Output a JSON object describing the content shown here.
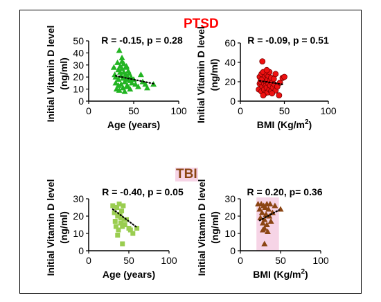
{
  "groups": {
    "ptsd": {
      "title": "PTSD",
      "color": "#ff0000"
    },
    "tbi": {
      "title": "TBI",
      "color": "#8b4513",
      "highlight": "#f6d4e6"
    }
  },
  "chart_data": [
    {
      "type": "scatter",
      "group": "PTSD",
      "annotation": "R = -0.15, p = 0.28",
      "xlabel": "Age (years)",
      "ylabel": [
        "Initial Vitamin D level",
        "(ng/ml)"
      ],
      "xlim": [
        0,
        100
      ],
      "ylim": [
        0,
        50
      ],
      "xticks": [
        0,
        50,
        100
      ],
      "yticks": [
        0,
        10,
        20,
        30,
        40,
        50
      ],
      "marker": "triangle",
      "color": "#22b422",
      "grid": false,
      "trendline": {
        "style": "dotted",
        "x": [
          30,
          72
        ],
        "y": [
          21,
          14.5
        ]
      },
      "points": [
        [
          28,
          28
        ],
        [
          29,
          22
        ],
        [
          30,
          15
        ],
        [
          31,
          10
        ],
        [
          32,
          32
        ],
        [
          33,
          26
        ],
        [
          33,
          18
        ],
        [
          34,
          9
        ],
        [
          35,
          29
        ],
        [
          35,
          24
        ],
        [
          36,
          21
        ],
        [
          36,
          14
        ],
        [
          37,
          33
        ],
        [
          37,
          27
        ],
        [
          38,
          19
        ],
        [
          38,
          11
        ],
        [
          39,
          31
        ],
        [
          39,
          24
        ],
        [
          40,
          16
        ],
        [
          40,
          8
        ],
        [
          41,
          28
        ],
        [
          41,
          22
        ],
        [
          42,
          29
        ],
        [
          42,
          18
        ],
        [
          43,
          13
        ],
        [
          44,
          25
        ],
        [
          44,
          19
        ],
        [
          45,
          23
        ],
        [
          46,
          17
        ],
        [
          47,
          20
        ],
        [
          48,
          15
        ],
        [
          50,
          18
        ],
        [
          52,
          14
        ],
        [
          55,
          12
        ],
        [
          58,
          22
        ],
        [
          60,
          16
        ],
        [
          63,
          14
        ],
        [
          65,
          11
        ],
        [
          72,
          14
        ],
        [
          34,
          42
        ],
        [
          37,
          36
        ],
        [
          30,
          20
        ],
        [
          46,
          10
        ],
        [
          33,
          13
        ],
        [
          42,
          12
        ]
      ]
    },
    {
      "type": "scatter",
      "group": "PTSD",
      "annotation": "R = -0.09, p = 0.51",
      "xlabel": "BMI (Kg/m²)",
      "ylabel": [
        "Initial Vitamin D level",
        "(ng/ml)"
      ],
      "xlim": [
        0,
        100
      ],
      "ylim": [
        0,
        60
      ],
      "xticks": [
        0,
        50,
        100
      ],
      "yticks": [
        0,
        20,
        40,
        60
      ],
      "marker": "circle",
      "color": "#ee1111",
      "grid": false,
      "trendline": {
        "style": "dotted",
        "x": [
          22,
          50
        ],
        "y": [
          21,
          17
        ]
      },
      "points": [
        [
          21,
          12
        ],
        [
          22,
          18
        ],
        [
          22,
          25
        ],
        [
          23,
          20
        ],
        [
          24,
          28
        ],
        [
          24,
          10
        ],
        [
          25,
          41
        ],
        [
          25,
          15
        ],
        [
          26,
          22
        ],
        [
          26,
          30
        ],
        [
          27,
          18
        ],
        [
          27,
          12
        ],
        [
          28,
          25
        ],
        [
          28,
          8
        ],
        [
          29,
          20
        ],
        [
          29,
          16
        ],
        [
          30,
          27
        ],
        [
          30,
          14
        ],
        [
          31,
          22
        ],
        [
          31,
          9
        ],
        [
          32,
          18
        ],
        [
          32,
          26
        ],
        [
          33,
          12
        ],
        [
          33,
          30
        ],
        [
          34,
          21
        ],
        [
          34,
          16
        ],
        [
          35,
          24
        ],
        [
          35,
          10
        ],
        [
          36,
          19
        ],
        [
          37,
          14
        ],
        [
          38,
          23
        ],
        [
          39,
          17
        ],
        [
          40,
          11
        ],
        [
          40,
          28
        ],
        [
          42,
          15
        ],
        [
          44,
          6
        ],
        [
          45,
          19
        ],
        [
          48,
          24
        ],
        [
          50,
          25
        ],
        [
          26,
          6
        ],
        [
          30,
          32
        ],
        [
          36,
          8
        ],
        [
          24,
          22
        ]
      ]
    },
    {
      "type": "scatter",
      "group": "TBI",
      "annotation": "R = -0.40, p = 0.05",
      "xlabel": "Age (years)",
      "ylabel": [
        "Initial Vitamin D level",
        "(ng/ml)"
      ],
      "xlim": [
        0,
        100
      ],
      "ylim": [
        0,
        30
      ],
      "xticks": [
        0,
        50,
        100
      ],
      "yticks": [
        0,
        10,
        20,
        30
      ],
      "marker": "square",
      "color": "#9acd50",
      "grid": false,
      "trendline": {
        "style": "dotted",
        "x": [
          30,
          60
        ],
        "y": [
          24,
          13.5
        ]
      },
      "points": [
        [
          30,
          26
        ],
        [
          32,
          22
        ],
        [
          33,
          17
        ],
        [
          34,
          14
        ],
        [
          35,
          25
        ],
        [
          36,
          20
        ],
        [
          37,
          12
        ],
        [
          38,
          27
        ],
        [
          39,
          21
        ],
        [
          40,
          16
        ],
        [
          40,
          19
        ],
        [
          41,
          23
        ],
        [
          42,
          14
        ],
        [
          42,
          4
        ],
        [
          43,
          26
        ],
        [
          44,
          18
        ],
        [
          45,
          15
        ],
        [
          47,
          18
        ],
        [
          50,
          13
        ],
        [
          52,
          12
        ],
        [
          55,
          10
        ],
        [
          60,
          13
        ],
        [
          36,
          9
        ]
      ]
    },
    {
      "type": "scatter",
      "group": "TBI",
      "annotation": "R = 0.20, p= 0.36",
      "xlabel": "BMI (Kg/m²)",
      "ylabel": [
        "Initial Vitamin D level",
        "(ng/ml)"
      ],
      "xlim": [
        0,
        100
      ],
      "ylim": [
        0,
        30
      ],
      "xticks": [
        0,
        50,
        100
      ],
      "yticks": [
        0,
        10,
        20,
        30
      ],
      "marker": "triangle",
      "color": "#8b4513",
      "background_highlight": "#f6d4e6",
      "grid": false,
      "trendline": {
        "style": "dotted",
        "x": [
          24,
          48
        ],
        "y": [
          17.5,
          23.5
        ]
      },
      "points": [
        [
          22,
          27
        ],
        [
          24,
          24
        ],
        [
          25,
          19
        ],
        [
          26,
          27
        ],
        [
          27,
          22
        ],
        [
          28,
          16
        ],
        [
          29,
          26
        ],
        [
          30,
          18
        ],
        [
          30,
          13
        ],
        [
          31,
          25
        ],
        [
          32,
          21
        ],
        [
          33,
          27
        ],
        [
          33,
          15
        ],
        [
          34,
          11
        ],
        [
          35,
          24
        ],
        [
          36,
          20
        ],
        [
          37,
          27
        ],
        [
          38,
          17
        ],
        [
          40,
          22
        ],
        [
          43,
          26
        ],
        [
          50,
          24
        ],
        [
          30,
          4
        ],
        [
          28,
          12
        ]
      ]
    }
  ]
}
